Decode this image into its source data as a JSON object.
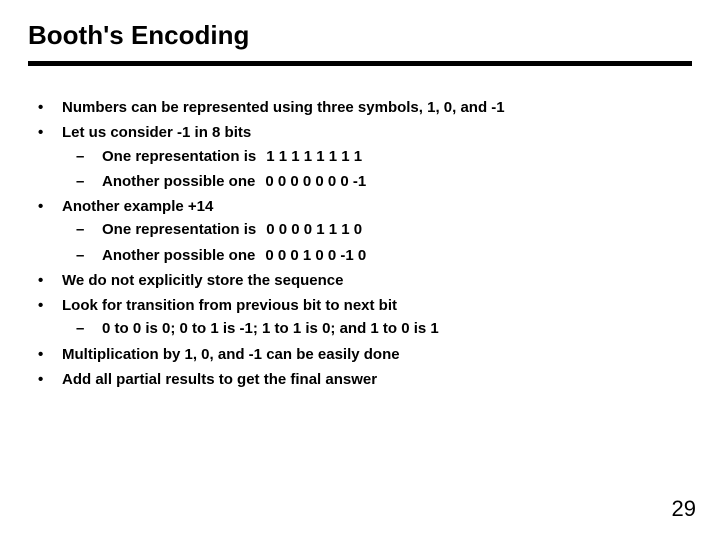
{
  "title": "Booth's Encoding",
  "bullets": {
    "b0": "Numbers can be represented using three symbols, 1, 0, and -1",
    "b1": "Let us consider -1 in 8 bits",
    "b1s0_label": "One representation is",
    "b1s0_seq": "1 1 1 1 1 1 1 1",
    "b1s1_label": "Another possible one",
    "b1s1_seq": "0 0 0 0 0 0 0 -1",
    "b2": "Another example +14",
    "b2s0_label": "One representation is",
    "b2s0_seq": "0 0 0 0 1 1 1 0",
    "b2s1_label": "Another possible one",
    "b2s1_seq": "0 0 0 1 0 0 -1 0",
    "b3": "We do not explicitly store the sequence",
    "b4": "Look for transition from previous bit to next bit",
    "b4s0": "0 to 0 is 0; 0 to 1 is -1; 1 to 1 is 0; and 1 to 0 is 1",
    "b5": "Multiplication by 1, 0, and -1 can be easily done",
    "b6": "Add all partial results to get the final answer"
  },
  "page_number": "29",
  "colors": {
    "text": "#000000",
    "background": "#ffffff",
    "rule": "#000000"
  },
  "typography": {
    "title_fontsize": 26,
    "body_fontsize": 15,
    "pagenum_fontsize": 22,
    "font_family": "Arial",
    "font_weight": "bold"
  }
}
